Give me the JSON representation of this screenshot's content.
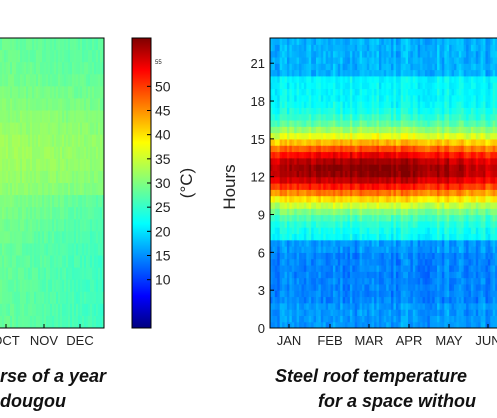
{
  "chart_data": [
    {
      "type": "heatmap",
      "x_tick_labels": [
        "OCT",
        "NOV",
        "DEC"
      ],
      "caption_lines": [
        "rse of a year",
        "dougou"
      ],
      "values_note": "",
      "colorscale_range": [
        0,
        60
      ]
    },
    {
      "type": "colorbar",
      "ticks": [
        "10",
        "15",
        "20",
        "25",
        "30",
        "35",
        "40",
        "45",
        "50"
      ],
      "tick_values": [
        10,
        15,
        20,
        25,
        30,
        35,
        40,
        45,
        50
      ],
      "small_tick": "55",
      "small_tick_value": 55,
      "unit_label": "(°C)",
      "range": [
        0,
        60
      ]
    },
    {
      "type": "heatmap",
      "ylabel": "Hours",
      "y_ticks": [
        "0",
        "3",
        "6",
        "9",
        "12",
        "15",
        "18",
        "21"
      ],
      "y_tick_values": [
        0,
        3,
        6,
        9,
        12,
        15,
        18,
        21
      ],
      "ylim": [
        0,
        23
      ],
      "x_tick_labels": [
        "JAN",
        "FEB",
        "MAR",
        "APR",
        "MAY",
        "JUN"
      ],
      "caption_lines": [
        "Steel roof temperature",
        "for a  space withou"
      ],
      "colorscale_range": [
        0,
        60
      ]
    }
  ],
  "colors": {
    "jet": [
      "#00007f",
      "#0000ff",
      "#007fff",
      "#00ffff",
      "#7fff7f",
      "#ffff00",
      "#ff7f00",
      "#ff0000",
      "#7f0000"
    ]
  }
}
